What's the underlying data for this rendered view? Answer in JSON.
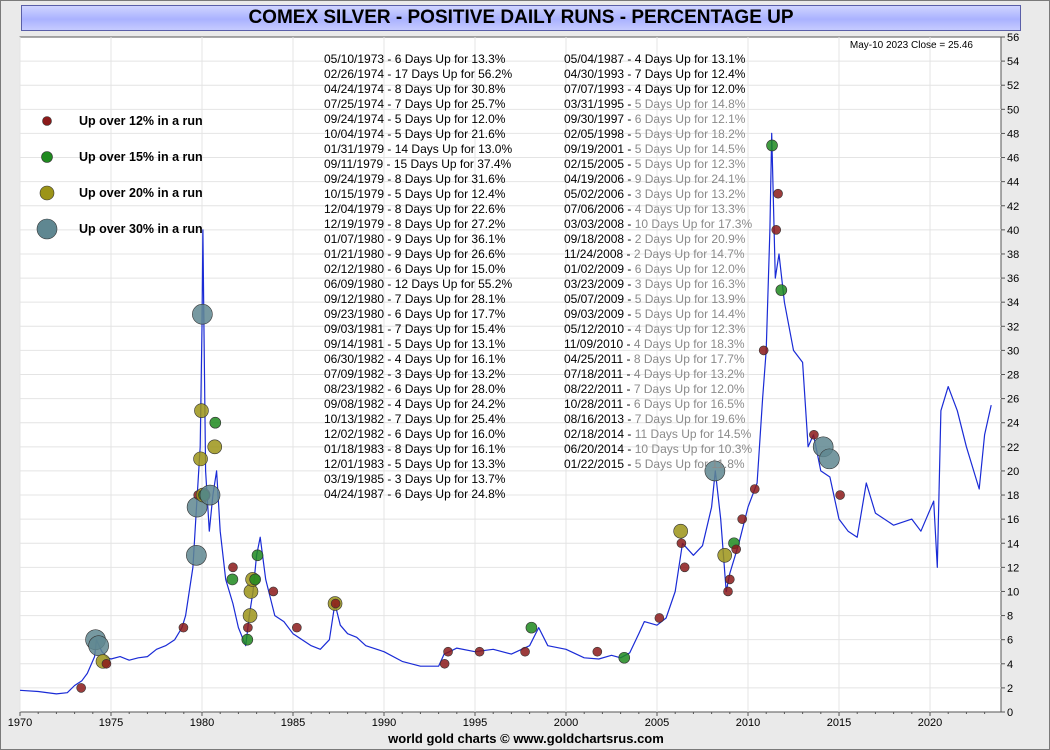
{
  "title": "COMEX SILVER - POSITIVE DAILY RUNS - PERCENTAGE UP",
  "footer": "world gold charts © www.goldchartsrus.com",
  "last_quote": "May-10  2023    Close = 25.46",
  "colors": {
    "line": "#1a2bd6",
    "up12": "#8b1a1a",
    "up15": "#1f8a1f",
    "up20": "#9c9418",
    "up30": "#5f8791",
    "faded_text": "#8a8a8a"
  },
  "legend": [
    {
      "label": "Up over 12% in a run",
      "key": "up12"
    },
    {
      "label": "Up over 15% in a run",
      "key": "up15"
    },
    {
      "label": "Up over 20% in a run",
      "key": "up20"
    },
    {
      "label": "Up over 30% in a run",
      "key": "up30"
    }
  ],
  "runs_col1": [
    {
      "date": "05/10/1973",
      "text": "6 Days Up for 13.3%"
    },
    {
      "date": "02/26/1974",
      "text": "17 Days Up for 56.2%"
    },
    {
      "date": "04/24/1974",
      "text": "8 Days Up for 30.8%"
    },
    {
      "date": "07/25/1974",
      "text": "7 Days Up for 25.7%"
    },
    {
      "date": "09/24/1974",
      "text": "5 Days Up for 12.0%"
    },
    {
      "date": "10/04/1974",
      "text": "5 Days Up for 21.6%"
    },
    {
      "date": "01/31/1979",
      "text": "14 Days Up for 13.0%"
    },
    {
      "date": "09/11/1979",
      "text": "15 Days Up for 37.4%"
    },
    {
      "date": "09/24/1979",
      "text": "8 Days Up for 31.6%"
    },
    {
      "date": "10/15/1979",
      "text": "5 Days Up for 12.4%"
    },
    {
      "date": "12/04/1979",
      "text": "8 Days Up for 22.6%"
    },
    {
      "date": "12/19/1979",
      "text": "8 Days Up for 27.2%"
    },
    {
      "date": "01/07/1980",
      "text": "9 Days Up for 36.1%"
    },
    {
      "date": "01/21/1980",
      "text": "9 Days Up for 26.6%"
    },
    {
      "date": "02/12/1980",
      "text": "6 Days Up for 15.0%"
    },
    {
      "date": "06/09/1980",
      "text": "12 Days Up for 55.2%"
    },
    {
      "date": "09/12/1980",
      "text": "7 Days Up for 28.1%"
    },
    {
      "date": "09/23/1980",
      "text": "6 Days Up for 17.7%"
    },
    {
      "date": "09/03/1981",
      "text": "7 Days Up for 15.4%"
    },
    {
      "date": "09/14/1981",
      "text": "5 Days Up for 13.1%"
    },
    {
      "date": "06/30/1982",
      "text": "4 Days Up for 16.1%"
    },
    {
      "date": "07/09/1982",
      "text": "3 Days Up for 13.2%"
    },
    {
      "date": "08/23/1982",
      "text": "6 Days Up for 28.0%"
    },
    {
      "date": "09/08/1982",
      "text": "4 Days Up for 24.2%"
    },
    {
      "date": "10/13/1982",
      "text": "7 Days Up for 25.4%"
    },
    {
      "date": "12/02/1982",
      "text": "6 Days Up for 16.0%"
    },
    {
      "date": "01/18/1983",
      "text": "8 Days Up for 16.1%"
    },
    {
      "date": "12/01/1983",
      "text": "5 Days Up for 13.3%"
    },
    {
      "date": "03/19/1985",
      "text": "3 Days Up for 13.7%"
    },
    {
      "date": "04/24/1987",
      "text": "6 Days Up for 24.8%"
    }
  ],
  "runs_col2": [
    {
      "date": "05/04/1987",
      "text": "4 Days Up for 13.1%",
      "faded": false
    },
    {
      "date": "04/30/1993",
      "text": "7 Days Up for 12.4%",
      "faded": false
    },
    {
      "date": "07/07/1993",
      "text": "4 Days Up for 12.0%",
      "faded": false
    },
    {
      "date": "03/31/1995",
      "text": "5 Days Up for 14.8%",
      "faded": true
    },
    {
      "date": "09/30/1997",
      "text": "6 Days Up for 12.1%",
      "faded": true
    },
    {
      "date": "02/05/1998",
      "text": "5 Days Up for 18.2%",
      "faded": true
    },
    {
      "date": "09/19/2001",
      "text": "5 Days Up for 14.5%",
      "faded": true
    },
    {
      "date": "02/15/2005",
      "text": "5 Days Up for 12.3%",
      "faded": true
    },
    {
      "date": "04/19/2006",
      "text": "9 Days Up for 24.1%",
      "faded": true
    },
    {
      "date": "05/02/2006",
      "text": "3 Days Up for 13.2%",
      "faded": true
    },
    {
      "date": "07/06/2006",
      "text": "4 Days Up for 13.3%",
      "faded": true
    },
    {
      "date": "03/03/2008",
      "text": "10 Days Up for 17.3%",
      "faded": true
    },
    {
      "date": "09/18/2008",
      "text": "2 Days Up for 20.9%",
      "faded": true
    },
    {
      "date": "11/24/2008",
      "text": "2 Days Up for 14.7%",
      "faded": true
    },
    {
      "date": "01/02/2009",
      "text": "6 Days Up for 12.0%",
      "faded": true
    },
    {
      "date": "03/23/2009",
      "text": "3 Days Up for 16.3%",
      "faded": true
    },
    {
      "date": "05/07/2009",
      "text": "5 Days Up for 13.9%",
      "faded": true
    },
    {
      "date": "09/03/2009",
      "text": "5 Days Up for 14.4%",
      "faded": true
    },
    {
      "date": "05/12/2010",
      "text": "4 Days Up for 12.3%",
      "faded": true
    },
    {
      "date": "11/09/2010",
      "text": "4 Days Up for 18.3%",
      "faded": true
    },
    {
      "date": "04/25/2011",
      "text": "8 Days Up for 17.7%",
      "faded": true
    },
    {
      "date": "07/18/2011",
      "text": "4 Days Up for 13.2%",
      "faded": true
    },
    {
      "date": "08/22/2011",
      "text": "7 Days Up for 12.0%",
      "faded": true
    },
    {
      "date": "10/28/2011",
      "text": "6 Days Up for 16.5%",
      "faded": true
    },
    {
      "date": "08/16/2013",
      "text": "7 Days Up for 19.6%",
      "faded": true
    },
    {
      "date": "02/18/2014",
      "text": "11 Days Up for 14.5%",
      "faded": true
    },
    {
      "date": "06/20/2014",
      "text": "10 Days Up for 10.3%",
      "faded": true
    },
    {
      "date": "01/22/2015",
      "text": "5 Days Up for 11.8%",
      "faded": true
    }
  ],
  "chart_data": {
    "type": "line",
    "title": "COMEX SILVER - POSITIVE DAILY RUNS - PERCENTAGE UP",
    "xlabel": "",
    "ylabel": "",
    "xlim": [
      1970,
      2023.9
    ],
    "ylim": [
      0,
      56
    ],
    "x_ticks": [
      1970,
      1975,
      1980,
      1985,
      1990,
      1995,
      2000,
      2005,
      2010,
      2015,
      2020
    ],
    "y_ticks": [
      0,
      2,
      4,
      6,
      8,
      10,
      12,
      14,
      16,
      18,
      20,
      22,
      24,
      26,
      28,
      30,
      32,
      34,
      36,
      38,
      40,
      42,
      44,
      46,
      48,
      50,
      52,
      54,
      56
    ],
    "y_axis_position": "right",
    "grid": true,
    "legend_position": "top-left",
    "series": [
      {
        "x": [
          1970.0,
          1971.0,
          1972.0,
          1972.6,
          1973.0,
          1973.4,
          1973.7,
          1974.1,
          1974.2,
          1974.5,
          1974.8,
          1975.0,
          1975.5,
          1976.0,
          1976.5,
          1977.0,
          1977.5,
          1978.0,
          1978.5,
          1978.9,
          1979.1,
          1979.5,
          1979.7,
          1979.9,
          1980.0,
          1980.05,
          1980.1,
          1980.2,
          1980.4,
          1980.6,
          1980.8,
          1981.0,
          1981.3,
          1981.7,
          1982.0,
          1982.4,
          1982.6,
          1982.8,
          1983.0,
          1983.2,
          1983.5,
          1984.0,
          1984.5,
          1985.0,
          1985.5,
          1986.0,
          1986.5,
          1987.0,
          1987.3,
          1987.6,
          1988.0,
          1988.5,
          1989.0,
          1990.0,
          1991.0,
          1992.0,
          1993.0,
          1993.3,
          1993.6,
          1994.0,
          1995.0,
          1996.0,
          1997.0,
          1998.0,
          1998.5,
          1999.0,
          2000.0,
          2001.0,
          2001.8,
          2002.5,
          2003.0,
          2003.5,
          2004.0,
          2004.3,
          2005.0,
          2005.5,
          2006.0,
          2006.4,
          2007.0,
          2007.5,
          2008.0,
          2008.2,
          2008.5,
          2008.8,
          2009.0,
          2009.5,
          2010.0,
          2010.5,
          2010.8,
          2011.0,
          2011.2,
          2011.3,
          2011.5,
          2011.7,
          2012.0,
          2012.5,
          2013.0,
          2013.3,
          2013.6,
          2014.0,
          2014.5,
          2015.0,
          2015.5,
          2016.0,
          2016.5,
          2017.0,
          2018.0,
          2019.0,
          2019.5,
          2020.2,
          2020.4,
          2020.6,
          2021.0,
          2021.5,
          2022.0,
          2022.7,
          2023.0,
          2023.36
        ],
        "values": [
          1.8,
          1.7,
          1.5,
          1.6,
          2.2,
          2.6,
          3.2,
          4.6,
          6.0,
          5.0,
          4.5,
          4.4,
          4.6,
          4.3,
          4.5,
          4.6,
          5.2,
          5.5,
          6.0,
          7.0,
          8.0,
          12.0,
          17.0,
          22.0,
          32.0,
          40.0,
          33.0,
          20.0,
          15.0,
          18.0,
          20.0,
          15.0,
          11.0,
          9.0,
          7.0,
          5.5,
          8.0,
          10.0,
          13.0,
          14.5,
          11.0,
          8.0,
          7.5,
          6.5,
          6.0,
          5.5,
          5.2,
          6.0,
          9.0,
          7.2,
          6.5,
          6.2,
          5.5,
          5.0,
          4.2,
          3.8,
          3.8,
          4.8,
          5.0,
          5.3,
          5.0,
          5.2,
          4.8,
          5.5,
          7.0,
          5.5,
          5.2,
          4.5,
          4.4,
          4.7,
          4.5,
          4.9,
          6.5,
          7.5,
          7.2,
          7.8,
          10.0,
          14.0,
          13.0,
          13.8,
          17.0,
          20.0,
          16.0,
          10.0,
          11.5,
          14.0,
          17.0,
          19.0,
          26.0,
          30.0,
          40.0,
          48.0,
          36.0,
          38.0,
          34.0,
          30.0,
          29.0,
          22.0,
          23.0,
          20.0,
          19.5,
          16.0,
          15.0,
          14.5,
          19.0,
          16.5,
          15.5,
          16.0,
          15.0,
          17.5,
          12.0,
          25.0,
          27.0,
          25.0,
          22.0,
          18.5,
          23.0,
          25.46
        ],
        "name": ""
      }
    ],
    "markers": [
      {
        "x": 1973.36,
        "y": 2.0,
        "category": "up12"
      },
      {
        "x": 1974.15,
        "y": 6.0,
        "category": "up30"
      },
      {
        "x": 1974.32,
        "y": 5.5,
        "category": "up30"
      },
      {
        "x": 1974.56,
        "y": 4.2,
        "category": "up20"
      },
      {
        "x": 1974.75,
        "y": 4.0,
        "category": "up12"
      },
      {
        "x": 1978.98,
        "y": 7.0,
        "category": "up12"
      },
      {
        "x": 1979.69,
        "y": 13.0,
        "category": "up30"
      },
      {
        "x": 1979.73,
        "y": 17.0,
        "category": "up30"
      },
      {
        "x": 1979.79,
        "y": 18.0,
        "category": "up12"
      },
      {
        "x": 1979.92,
        "y": 21.0,
        "category": "up20"
      },
      {
        "x": 1979.97,
        "y": 25.0,
        "category": "up20"
      },
      {
        "x": 1980.02,
        "y": 33.0,
        "category": "up30"
      },
      {
        "x": 1980.06,
        "y": 18.0,
        "category": "up20"
      },
      {
        "x": 1980.11,
        "y": 18.0,
        "category": "up15"
      },
      {
        "x": 1980.44,
        "y": 18.0,
        "category": "up30"
      },
      {
        "x": 1980.7,
        "y": 22.0,
        "category": "up20"
      },
      {
        "x": 1980.73,
        "y": 24.0,
        "category": "up15"
      },
      {
        "x": 1981.67,
        "y": 11.0,
        "category": "up15"
      },
      {
        "x": 1981.7,
        "y": 12.0,
        "category": "up12"
      },
      {
        "x": 1982.49,
        "y": 6.0,
        "category": "up15"
      },
      {
        "x": 1982.52,
        "y": 7.0,
        "category": "up12"
      },
      {
        "x": 1982.64,
        "y": 8.0,
        "category": "up20"
      },
      {
        "x": 1982.69,
        "y": 10.0,
        "category": "up20"
      },
      {
        "x": 1982.78,
        "y": 11.0,
        "category": "up20"
      },
      {
        "x": 1982.92,
        "y": 11.0,
        "category": "up15"
      },
      {
        "x": 1983.05,
        "y": 13.0,
        "category": "up15"
      },
      {
        "x": 1983.92,
        "y": 10.0,
        "category": "up12"
      },
      {
        "x": 1985.21,
        "y": 7.0,
        "category": "up12"
      },
      {
        "x": 1987.31,
        "y": 9.0,
        "category": "up20"
      },
      {
        "x": 1987.34,
        "y": 9.0,
        "category": "up12"
      },
      {
        "x": 1993.33,
        "y": 4.0,
        "category": "up12"
      },
      {
        "x": 1993.52,
        "y": 5.0,
        "category": "up12"
      },
      {
        "x": 1995.25,
        "y": 5.0,
        "category": "up12"
      },
      {
        "x": 1997.75,
        "y": 5.0,
        "category": "up12"
      },
      {
        "x": 1998.1,
        "y": 7.0,
        "category": "up15"
      },
      {
        "x": 2001.72,
        "y": 5.0,
        "category": "up12"
      },
      {
        "x": 2003.2,
        "y": 4.5,
        "category": "up15"
      },
      {
        "x": 2005.13,
        "y": 7.8,
        "category": "up12"
      },
      {
        "x": 2006.3,
        "y": 15.0,
        "category": "up20"
      },
      {
        "x": 2006.34,
        "y": 14.0,
        "category": "up12"
      },
      {
        "x": 2006.52,
        "y": 12.0,
        "category": "up12"
      },
      {
        "x": 2008.18,
        "y": 20.0,
        "category": "up30"
      },
      {
        "x": 2008.72,
        "y": 13.0,
        "category": "up20"
      },
      {
        "x": 2008.9,
        "y": 10.0,
        "category": "up12"
      },
      {
        "x": 2009.0,
        "y": 11.0,
        "category": "up12"
      },
      {
        "x": 2009.23,
        "y": 14.0,
        "category": "up15"
      },
      {
        "x": 2009.35,
        "y": 13.5,
        "category": "up12"
      },
      {
        "x": 2009.68,
        "y": 16.0,
        "category": "up12"
      },
      {
        "x": 2010.37,
        "y": 18.5,
        "category": "up12"
      },
      {
        "x": 2010.86,
        "y": 30.0,
        "category": "up12"
      },
      {
        "x": 2011.32,
        "y": 47.0,
        "category": "up15"
      },
      {
        "x": 2011.55,
        "y": 40.0,
        "category": "up12"
      },
      {
        "x": 2011.65,
        "y": 43.0,
        "category": "up12"
      },
      {
        "x": 2011.83,
        "y": 35.0,
        "category": "up15"
      },
      {
        "x": 2013.62,
        "y": 23.0,
        "category": "up12"
      },
      {
        "x": 2014.13,
        "y": 22.0,
        "category": "up30"
      },
      {
        "x": 2014.47,
        "y": 21.0,
        "category": "up30"
      },
      {
        "x": 2015.06,
        "y": 18.0,
        "category": "up12"
      }
    ]
  }
}
